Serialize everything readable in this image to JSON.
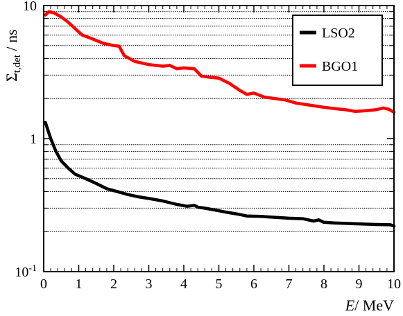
{
  "chart_data": {
    "type": "line",
    "xlabel_var": "E",
    "xlabel_unit": "/ MeV",
    "ylabel_main": "Σ",
    "ylabel_sub": "t,det",
    "ylabel_unit": " / ns",
    "x_range": [
      0,
      10
    ],
    "y_range": [
      0.1,
      10
    ],
    "y_scale": "log",
    "grid": "horizontal dotted at minor log ticks",
    "legend_placement": "top-right",
    "x_ticks": [
      "0",
      "1",
      "2",
      "3",
      "4",
      "5",
      "6",
      "7",
      "8",
      "9",
      "10"
    ],
    "y_ticks": [
      {
        "value": 10,
        "label": "10"
      },
      {
        "value": 1,
        "label": "1"
      },
      {
        "value": 0.1,
        "base": "10",
        "exp": "-1"
      }
    ],
    "series": [
      {
        "name": "LSO2",
        "color": "#000000",
        "x": [
          0.05,
          0.2,
          0.35,
          0.5,
          0.7,
          0.9,
          1.2,
          1.5,
          1.8,
          2.1,
          2.4,
          2.7,
          3.0,
          3.4,
          3.8,
          4.1,
          4.3,
          4.4,
          4.6,
          4.9,
          5.2,
          5.5,
          5.8,
          6.2,
          6.6,
          7.0,
          7.4,
          7.7,
          7.85,
          8.0,
          8.3,
          8.7,
          9.1,
          9.5,
          9.9,
          10.0
        ],
        "y": [
          1.32,
          1.0,
          0.8,
          0.68,
          0.6,
          0.54,
          0.5,
          0.46,
          0.42,
          0.4,
          0.38,
          0.365,
          0.355,
          0.34,
          0.32,
          0.31,
          0.315,
          0.305,
          0.3,
          0.29,
          0.28,
          0.272,
          0.262,
          0.26,
          0.256,
          0.252,
          0.25,
          0.24,
          0.245,
          0.235,
          0.232,
          0.23,
          0.228,
          0.226,
          0.225,
          0.22
        ]
      },
      {
        "name": "BGO1",
        "color": "#ff0000",
        "x": [
          0.05,
          0.15,
          0.3,
          0.5,
          0.7,
          0.9,
          1.1,
          1.4,
          1.7,
          2.0,
          2.15,
          2.3,
          2.6,
          3.0,
          3.4,
          3.6,
          3.8,
          4.0,
          4.3,
          4.5,
          4.7,
          5.0,
          5.3,
          5.6,
          5.8,
          6.0,
          6.3,
          6.6,
          6.9,
          7.2,
          7.5,
          7.8,
          8.0,
          8.3,
          8.6,
          8.9,
          9.2,
          9.5,
          9.7,
          9.85,
          10.0
        ],
        "y": [
          8.5,
          9.0,
          8.8,
          8.2,
          7.5,
          6.7,
          6.0,
          5.6,
          5.2,
          5.0,
          4.95,
          4.2,
          3.8,
          3.6,
          3.5,
          3.55,
          3.35,
          3.4,
          3.35,
          2.95,
          2.9,
          2.85,
          2.6,
          2.3,
          2.15,
          2.2,
          2.05,
          2.0,
          1.95,
          1.85,
          1.8,
          1.75,
          1.72,
          1.68,
          1.65,
          1.6,
          1.62,
          1.65,
          1.7,
          1.66,
          1.58
        ]
      }
    ]
  }
}
